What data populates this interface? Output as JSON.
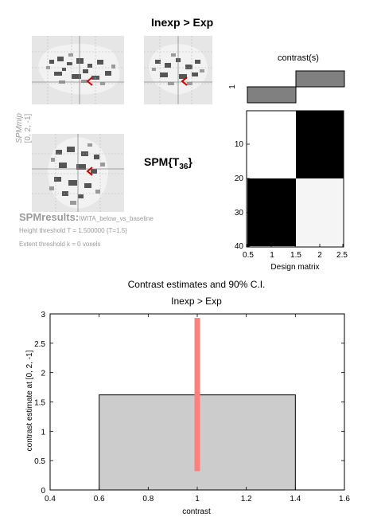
{
  "header": {
    "contrast_title": "Inexp > Exp",
    "spm_stat_prefix": "SPM{T",
    "spm_stat_sub": "36",
    "spm_stat_suffix": "}"
  },
  "side_panel": {
    "line1": "SPMmip",
    "line2": "[0, 2, -1]"
  },
  "results": {
    "prefix": "SPMresults:",
    "name": "\\WITA_below_vs_baseline",
    "height_threshold": "Height threshold T = 1.500000  {T=1.5}",
    "extent_threshold": "Extent threshold k = 0 voxels"
  },
  "contrast_panel": {
    "title": "contrast(s)",
    "row_label": "1",
    "weights": [
      0,
      -1,
      1
    ]
  },
  "design_matrix": {
    "xlabel": "Design matrix",
    "xticks": [
      "0.5",
      "1",
      "1.5",
      "2",
      "2.5"
    ],
    "yticks": [
      "10",
      "20",
      "30",
      "40"
    ]
  },
  "chart_data": {
    "type": "bar",
    "title": "Contrast estimates and 90% C.I.",
    "subtitle": "Inexp > Exp",
    "xlabel": "contrast",
    "ylabel": "contrast estimate at [0, 2, -1]",
    "categories": [
      1
    ],
    "values": [
      1.62
    ],
    "ci": [
      [
        0.32,
        2.93
      ]
    ],
    "xlim": [
      0.4,
      1.6
    ],
    "ylim": [
      0,
      3
    ],
    "xticks": [
      "0.4",
      "0.6",
      "0.8",
      "1",
      "1.2",
      "1.4",
      "1.6"
    ],
    "yticks": [
      "0",
      "0.5",
      "1",
      "1.5",
      "2",
      "2.5",
      "3"
    ],
    "colors": {
      "bar": "#cccccc",
      "ci": "#ff7f7f"
    },
    "grid": false,
    "legend": "none"
  }
}
